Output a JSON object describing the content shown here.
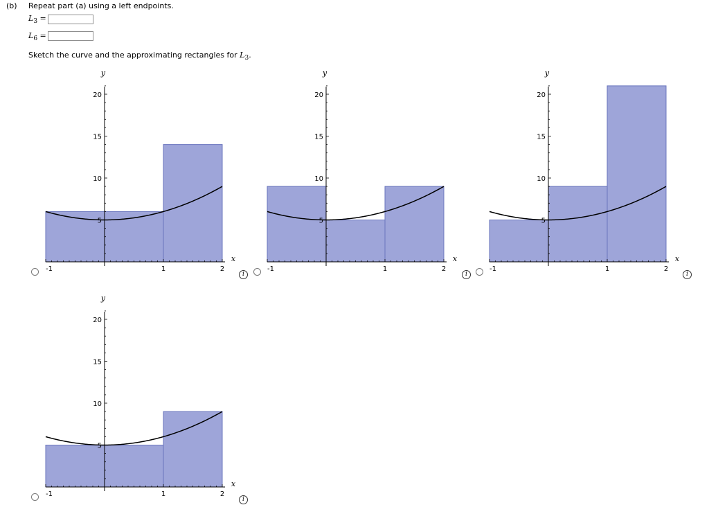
{
  "question": {
    "part_label": "(b)",
    "prompt": "Repeat part (a) using a left endpoints.",
    "l3_label": {
      "letter": "L",
      "sub": "3",
      "eq": "="
    },
    "l6_label": {
      "letter": "L",
      "sub": "6",
      "eq": "="
    },
    "l3_value": "",
    "l6_value": "",
    "sketch_prompt_pre": "Sketch the curve and the approximating rectangles for ",
    "sketch_prompt_letter": "L",
    "sketch_prompt_sub": "3",
    "sketch_prompt_post": "."
  },
  "info_glyph": "i",
  "chart_data": [
    {
      "type": "bar",
      "xlabel": "x",
      "ylabel": "y",
      "x_ticks": [
        "-1",
        "1",
        "2"
      ],
      "y_ticks": [
        "5",
        "10",
        "15",
        "20"
      ],
      "xlim": [
        -1,
        2
      ],
      "ylim": [
        0,
        21
      ],
      "rectangles": [
        {
          "x0": -1,
          "x1": 1,
          "height": 6
        },
        {
          "x0": 1,
          "x1": 2,
          "height": 14
        }
      ],
      "curve": "y = x^2 + 5"
    },
    {
      "type": "bar",
      "xlabel": "x",
      "ylabel": "y",
      "x_ticks": [
        "-1",
        "1",
        "2"
      ],
      "y_ticks": [
        "5",
        "10",
        "15",
        "20"
      ],
      "xlim": [
        -1,
        2
      ],
      "ylim": [
        0,
        21
      ],
      "rectangles": [
        {
          "x0": -1,
          "x1": 0,
          "height": 9
        },
        {
          "x0": 0,
          "x1": 1,
          "height": 5
        },
        {
          "x0": 1,
          "x1": 2,
          "height": 9
        }
      ],
      "curve": "y = x^2 + 5"
    },
    {
      "type": "bar",
      "xlabel": "x",
      "ylabel": "y",
      "x_ticks": [
        "-1",
        "1",
        "2"
      ],
      "y_ticks": [
        "5",
        "10",
        "15",
        "20"
      ],
      "xlim": [
        -1,
        2
      ],
      "ylim": [
        0,
        21
      ],
      "rectangles": [
        {
          "x0": -1,
          "x1": 0,
          "height": 5
        },
        {
          "x0": 0,
          "x1": 1,
          "height": 9
        },
        {
          "x0": 1,
          "x1": 2,
          "height": 21
        }
      ],
      "curve": "y = x^2 + 5"
    },
    {
      "type": "bar",
      "xlabel": "x",
      "ylabel": "y",
      "x_ticks": [
        "-1",
        "1",
        "2"
      ],
      "y_ticks": [
        "5",
        "10",
        "15",
        "20"
      ],
      "xlim": [
        -1,
        2
      ],
      "ylim": [
        0,
        21
      ],
      "rectangles": [
        {
          "x0": -1,
          "x1": 1,
          "height": 5
        },
        {
          "x0": 1,
          "x1": 2,
          "height": 9
        }
      ],
      "curve": "y = x^2 + 5"
    }
  ],
  "colors": {
    "rect_fill": "#9ea5d9",
    "rect_stroke": "#6a75bd",
    "curve": "#000000",
    "axis": "#000000"
  }
}
